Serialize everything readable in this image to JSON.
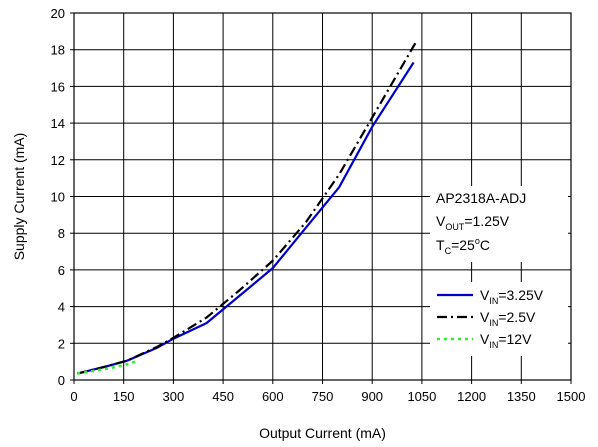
{
  "chart_data": {
    "type": "line",
    "xlabel": "Output Current (mA)",
    "ylabel": "Supply Current (mA)",
    "xlim": [
      0,
      1500
    ],
    "ylim": [
      0,
      20
    ],
    "xticks": [
      0,
      150,
      300,
      450,
      600,
      750,
      900,
      1050,
      1200,
      1350,
      1500
    ],
    "yticks": [
      0,
      2,
      4,
      6,
      8,
      10,
      12,
      14,
      16,
      18,
      20
    ],
    "grid": true,
    "annotation": {
      "device": "AP2318A-ADJ",
      "vout_main": "V",
      "vout_sub": "OUT",
      "vout_value": "=1.25V",
      "tc_main": "T",
      "tc_sub": "C",
      "tc_value": "=25",
      "tc_sup": "o",
      "tc_unit": "C"
    },
    "legend_position": "right",
    "series": [
      {
        "name_main": "V",
        "name_sub": "IN",
        "name_value": "=3.25V",
        "color": "#0000cc",
        "dash": "solid",
        "x": [
          10,
          100,
          160,
          250,
          300,
          400,
          500,
          600,
          700,
          800,
          900,
          1025
        ],
        "y": [
          0.35,
          0.75,
          1.05,
          1.75,
          2.25,
          3.1,
          4.6,
          6.1,
          8.3,
          10.5,
          13.8,
          17.3
        ]
      },
      {
        "name_main": "V",
        "name_sub": "IN",
        "name_value": "=2.5V",
        "color": "#000000",
        "dash": "dashdot",
        "x": [
          10,
          100,
          160,
          250,
          300,
          400,
          500,
          600,
          700,
          800,
          900,
          1035
        ],
        "y": [
          0.35,
          0.75,
          1.05,
          1.8,
          2.3,
          3.4,
          4.9,
          6.5,
          8.6,
          11.2,
          14.3,
          18.5
        ]
      },
      {
        "name_main": "V",
        "name_sub": "IN",
        "name_value": "=12V",
        "color": "#33ee33",
        "dash": "dotted",
        "x": [
          10,
          60,
          110,
          160,
          185
        ],
        "y": [
          0.35,
          0.5,
          0.65,
          0.85,
          1.0
        ]
      }
    ]
  }
}
